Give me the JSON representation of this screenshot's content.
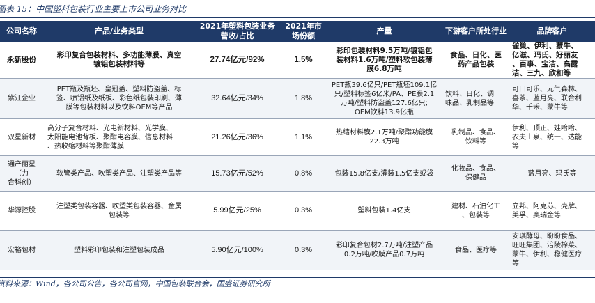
{
  "title": "图表 15：中国塑料包装行业主要上市公司业务对比",
  "headers": [
    "公司名称",
    "产品/业务类型",
    "2021年塑料包装业务\n营收/占比",
    "2021年市\n场份额",
    "产量",
    "下游客户所处行业",
    "品牌客户"
  ],
  "rows": [
    [
      "永新股份",
      "彩印复合包装材料、多功能薄膜、真空\n镀铝包装材料等",
      "27.74亿元/92%",
      "1.5%",
      "彩印包装材料9.5万吨/镀铝包\n装材料1.6万吨/塑料软包装薄\n膜6.8万吨",
      "食品、日化、医\n药产品包装",
      "雀巢、伊利、蒙牛、\n亿滋、玛氏、好丽友\n、百事、宝洁、高露\n洁、三九、欣和等"
    ],
    [
      "紫江企业",
      "PET瓶及瓶坯、皇冠盖、塑料防盗盖、标\n签、喷铝纸及纸板、彩色纸包装印刷、薄\n膜等包装材料以及饮料OEM等产品",
      "32.64亿元/34%",
      "1.8%",
      "PET瓶39.6亿只/PET瓶坯109.1亿\n只/塑料标签6亿米/PA、PE膜2.1\n万吨/塑料防盗盖127.6亿只;\nOEM饮料13.9亿瓶",
      "饮料、日化、调\n味品、乳制品等",
      "可口可乐、元气森林、\n喜茶、蓝月亮、联合利\n华、千禾、蒙牛等"
    ],
    [
      "双星新材",
      "高分子复合材料、光电新材料、光学膜、\n太阳能电池背板、聚酯电容膜、信息材料\n、热收缩材料等聚酯薄膜",
      "21.26亿元/36%",
      "1.1%",
      "热缩材料膜2.1万吨/聚酯功能膜\n22.3万吨",
      "乳制品、食品、\n饮料等",
      "伊利、顶正、娃哈哈、\n农夫山泉、统一、达能\n等"
    ],
    [
      "通产丽星（力\n合科创）",
      "软管类产品、吹塑类产品、注塑类产品等",
      "15.73亿元/52%",
      "0.8%",
      "包装15.8亿支/灌装1.5亿支或袋",
      "化妆品、食品、\n保健品",
      "蓝月亮、玛氏等"
    ],
    [
      "华源控股",
      "注塑类包装容器、吹塑类包装容器、金属\n包装等",
      "5.99亿元/25%",
      "0.3%",
      "塑料包装1.4亿支",
      "建材、石油化工\n、包装等",
      "立邦、阿克苏、壳牌、\n美孚、奥瑞金等"
    ],
    [
      "宏裕包材",
      "塑料彩印包装和注塑包装成品",
      "5.90亿元/100%",
      "0.3%",
      "彩印复合包材2.7万吨/注塑产品\n0.2万吨/吹膜产品0.7万吨",
      "食品、医疗等",
      "安琪酵母、盼盼食品、\n旺旺集团、涪陵榨菜、\n蒙牛、伊利、稳健医疗\n等"
    ]
  ],
  "source": "资料来源：Wind，各公司公告，各公司官网，中国包装联合会，国盛证券研究所"
}
